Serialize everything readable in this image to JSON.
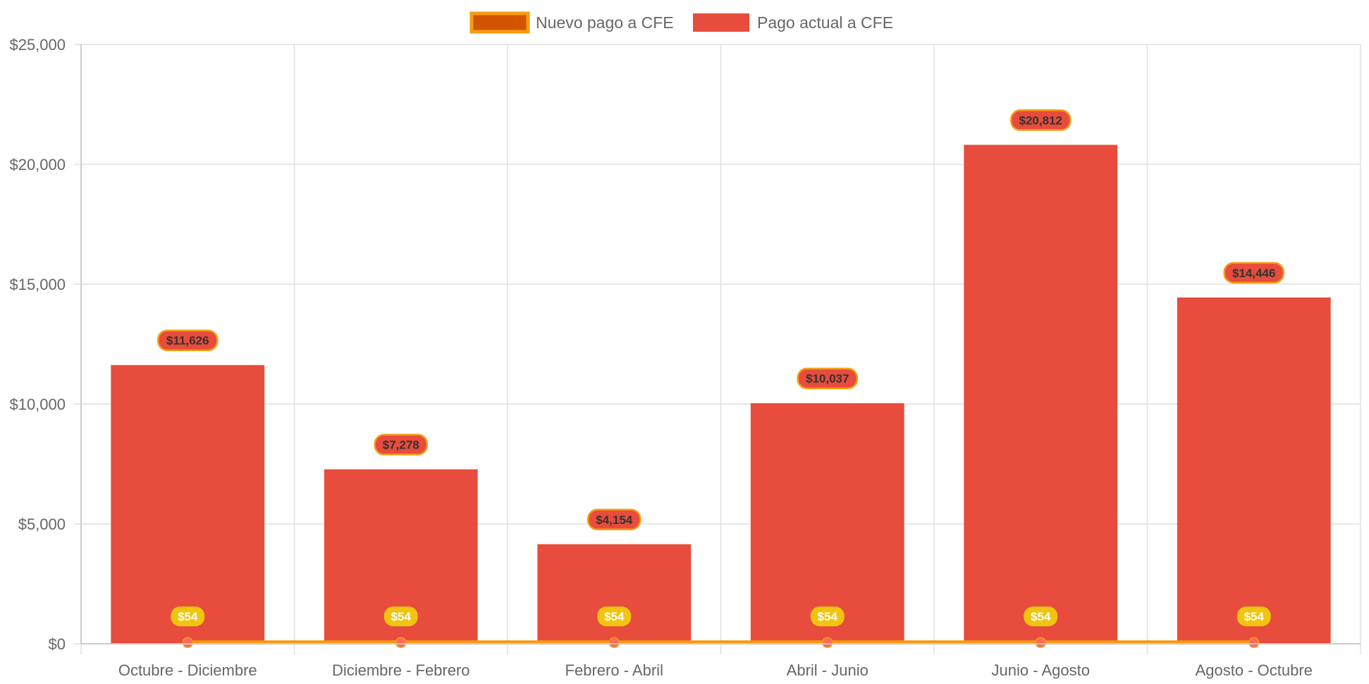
{
  "chart_data": {
    "type": "bar",
    "title": "",
    "xlabel": "",
    "ylabel": "",
    "ylim": [
      0,
      25000
    ],
    "y_ticks": [
      0,
      5000,
      10000,
      15000,
      20000,
      25000
    ],
    "y_tick_labels": [
      "$0",
      "$5,000",
      "$10,000",
      "$15,000",
      "$20,000",
      "$25,000"
    ],
    "categories": [
      "Octubre - Diciembre",
      "Diciembre - Febrero",
      "Febrero - Abril",
      "Abril - Junio",
      "Junio - Agosto",
      "Agosto - Octubre"
    ],
    "legend_position": "top-center",
    "grid": true,
    "series": [
      {
        "name": "Nuevo pago a CFE",
        "type": "line",
        "values": [
          54,
          54,
          54,
          54,
          54,
          54
        ],
        "labels": [
          "$54",
          "$54",
          "$54",
          "$54",
          "$54",
          "$54"
        ],
        "color": "#f39c12",
        "legend_fill": "#d35400",
        "point_color": "#ff6b5b",
        "label_bg": "#f1c40f",
        "label_text_color": "#ffffff"
      },
      {
        "name": "Pago actual a CFE",
        "type": "bar",
        "values": [
          11626,
          7278,
          4154,
          10037,
          20812,
          14446
        ],
        "labels": [
          "$11,626",
          "$7,278",
          "$4,154",
          "$10,037",
          "$20,812",
          "$14,446"
        ],
        "color": "#e74c3c",
        "label_bg": "#e74c3c",
        "label_border": "#f39c12",
        "label_text_color": "#333333"
      }
    ]
  }
}
